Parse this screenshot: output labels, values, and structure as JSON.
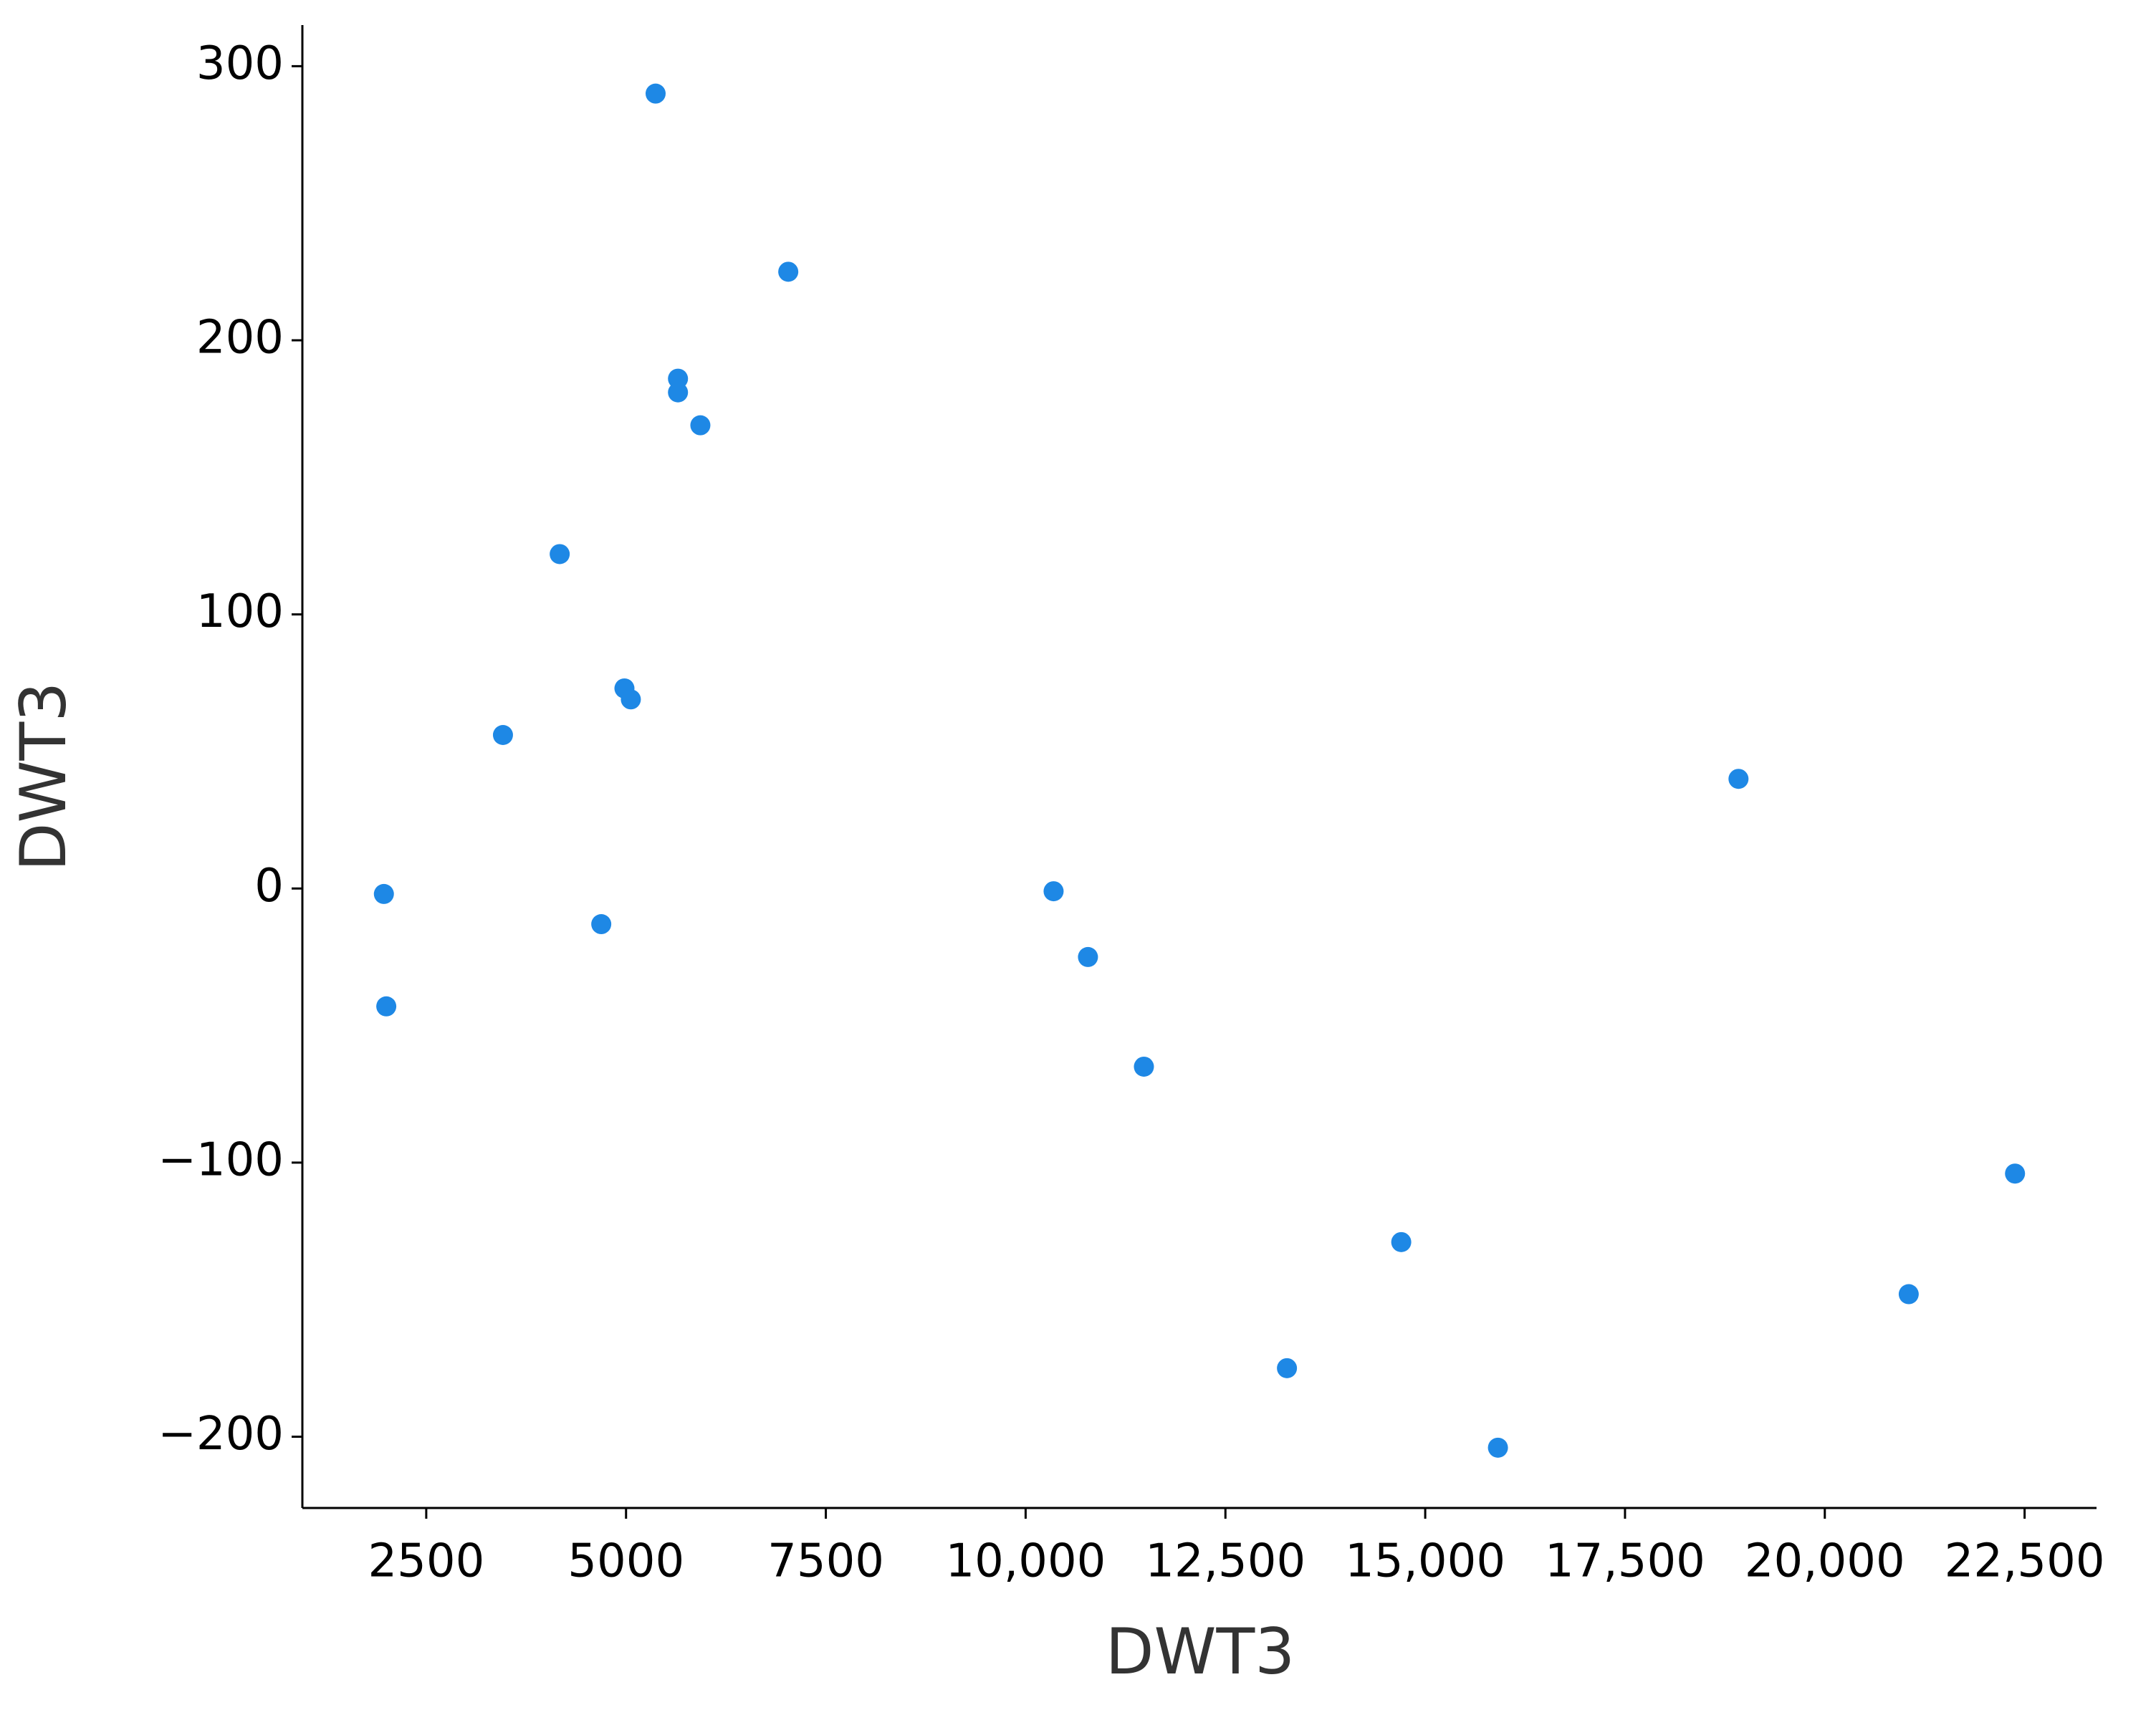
{
  "chart_data": {
    "type": "scatter",
    "xlabel": "DWT3",
    "ylabel": "DWT3",
    "color": "#1e88e5",
    "x": [
      1970,
      2000,
      3460,
      4170,
      4690,
      4980,
      5060,
      5370,
      5650,
      5650,
      5930,
      7030,
      10350,
      10780,
      11480,
      13270,
      14700,
      15910,
      18920,
      21050,
      22380
    ],
    "values": [
      -2,
      -43,
      56,
      122,
      -13,
      73,
      69,
      290,
      186,
      181,
      169,
      225,
      -1,
      -25,
      -65,
      -175,
      -129,
      -204,
      40,
      -148,
      -104
    ],
    "xlim": [
      950,
      23400
    ],
    "ylim": [
      -226,
      315
    ],
    "xticks": [
      2500,
      5000,
      7500,
      {
        "value": 10000,
        "label": "10,000"
      },
      {
        "value": 12500,
        "label": "12,500"
      },
      {
        "value": 15000,
        "label": "15,000"
      },
      {
        "value": 17500,
        "label": "17,500"
      },
      {
        "value": 20000,
        "label": "20,000"
      },
      {
        "value": 22500,
        "label": "22,500"
      }
    ],
    "yticks": [
      {
        "value": -200,
        "label": "−200"
      },
      {
        "value": -100,
        "label": "−100"
      },
      0,
      100,
      200,
      300
    ],
    "grid": false
  }
}
